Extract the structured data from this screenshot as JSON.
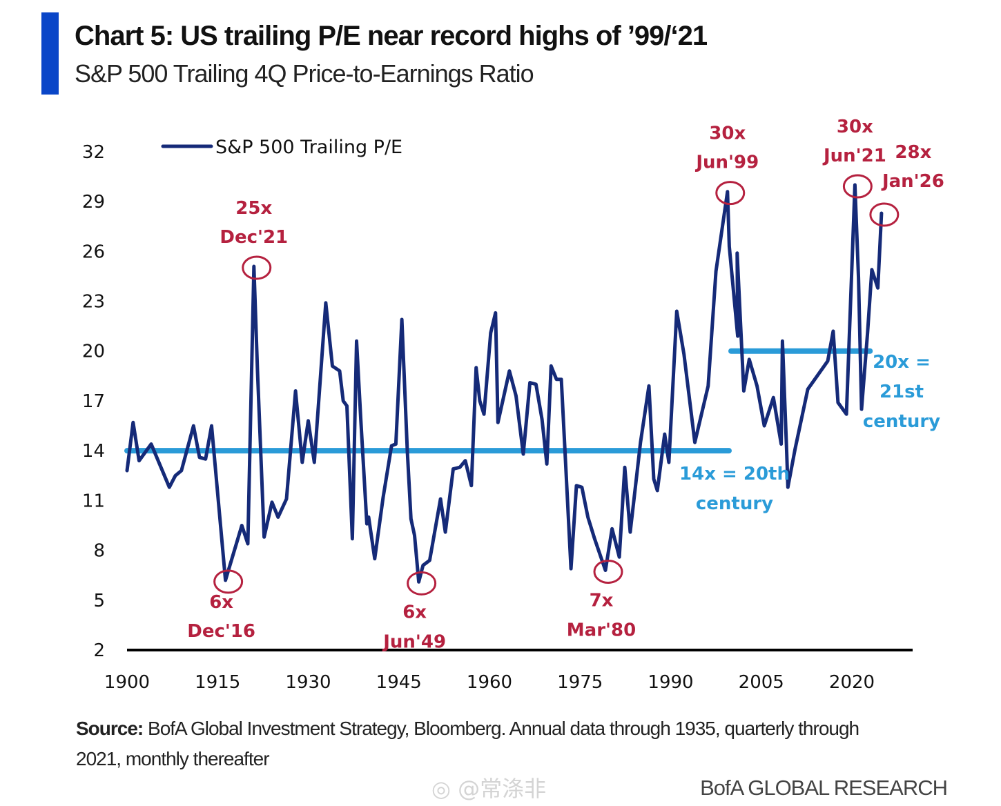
{
  "header": {
    "title": "Chart 5: US trailing P/E near record highs of ’99/‘21",
    "subtitle": "S&P 500 Trailing 4Q Price-to-Earnings Ratio"
  },
  "footer": {
    "source_label": "Source:",
    "source_text": " BofA Global Investment Strategy, Bloomberg. Annual data through 1935, quarterly through 2021, monthly thereafter",
    "watermark": "@常涤非",
    "brand": "BofA GLOBAL RESEARCH"
  },
  "colors": {
    "accent": "#0a46c8",
    "series": "#152a78",
    "average_line": "#2a9bd8",
    "annotation_red": "#b5213f"
  },
  "chart_data": {
    "type": "line",
    "title": "Chart 5: US trailing P/E near record highs of ’99/‘21",
    "subtitle": "S&P 500 Trailing 4Q Price-to-Earnings Ratio",
    "xlabel": "",
    "ylabel": "",
    "xlim": [
      1900,
      2030
    ],
    "ylim": [
      2,
      32
    ],
    "x_ticks": [
      1900,
      1915,
      1930,
      1945,
      1960,
      1975,
      1990,
      2005,
      2020
    ],
    "y_ticks": [
      2,
      5,
      8,
      11,
      14,
      17,
      20,
      23,
      26,
      29,
      32
    ],
    "grid": false,
    "legend": {
      "position": "top-left",
      "entries": [
        "S&P 500 Trailing P/E"
      ]
    },
    "series": [
      {
        "name": "S&P 500 Trailing P/E",
        "x": [
          1900,
          1901,
          1902,
          1904,
          1907,
          1908,
          1909,
          1911,
          1912,
          1913,
          1914,
          1916.3,
          1919,
          1920,
          1921,
          1921.6,
          1922.7,
          1924,
          1925,
          1926.4,
          1927.9,
          1929,
          1930,
          1931,
          1932.9,
          1934,
          1935.2,
          1935.8,
          1936.4,
          1937.3,
          1938,
          1938.7,
          1939.7,
          1940,
          1941,
          1942.4,
          1943.8,
          1944.5,
          1945.5,
          1946.4,
          1947,
          1947.6,
          1948.3,
          1949,
          1950.1,
          1951.9,
          1952.7,
          1954,
          1955.1,
          1956,
          1957,
          1957.8,
          1958.4,
          1959.1,
          1960.2,
          1961,
          1961.4,
          1963.3,
          1964.4,
          1965.6,
          1966.7,
          1967.7,
          1968.7,
          1969.5,
          1970.2,
          1971.1,
          1971.9,
          1973.5,
          1974.4,
          1975.3,
          1976.3,
          1977.4,
          1979.2,
          1980.3,
          1981.5,
          1982.4,
          1983.3,
          1985,
          1986.4,
          1987.2,
          1987.8,
          1989,
          1989.7,
          1991,
          1992.2,
          1994,
          1996.2,
          1997.5,
          1999.4,
          1999.7,
          2001.1,
          2001,
          2002.1,
          2003,
          2004.3,
          2005.5,
          2007,
          2008.3,
          2008.5,
          2009.2,
          2009.4,
          2010.6,
          2012.7,
          2016,
          2016.9,
          2017.7,
          2019.1,
          2020.5,
          2021.1,
          2021.6,
          2022.6,
          2023.3,
          2024.3,
          2024.9
        ],
        "values": [
          12.8,
          15.7,
          13.4,
          14.4,
          11.8,
          12.5,
          12.8,
          15.5,
          13.6,
          13.5,
          15.5,
          6.2,
          9.5,
          8.4,
          25.1,
          18.8,
          8.8,
          10.9,
          10.0,
          11.1,
          17.6,
          13.3,
          15.8,
          13.3,
          22.9,
          19.1,
          18.8,
          17.0,
          16.7,
          8.7,
          20.6,
          15.9,
          9.6,
          10.0,
          7.5,
          11.2,
          14.3,
          14.4,
          21.9,
          14.0,
          9.9,
          8.9,
          6.1,
          7.1,
          7.4,
          11.1,
          9.1,
          12.9,
          13.0,
          13.4,
          11.9,
          19.0,
          17.0,
          16.2,
          21.1,
          22.3,
          15.7,
          18.8,
          17.3,
          13.8,
          18.1,
          18.0,
          15.9,
          13.2,
          19.1,
          18.3,
          18.3,
          6.9,
          11.9,
          11.8,
          10.0,
          8.7,
          6.8,
          9.3,
          7.6,
          13.0,
          9.1,
          14.5,
          17.9,
          12.3,
          11.6,
          15.0,
          13.3,
          22.4,
          19.8,
          14.5,
          17.9,
          24.8,
          29.6,
          26.3,
          20.9,
          25.9,
          17.6,
          19.5,
          17.9,
          15.5,
          17.2,
          14.4,
          20.6,
          14.0,
          11.8,
          14.1,
          17.7,
          19.4,
          21.2,
          16.9,
          16.2,
          30.0,
          24.4,
          16.5,
          21.1,
          24.9,
          23.8,
          28.3
        ]
      }
    ],
    "reference_lines": [
      {
        "label": "14x = 20th century",
        "value": 14,
        "x_range": [
          1900,
          2000
        ]
      },
      {
        "label": "20x = 21st century",
        "value": 20,
        "x_range": [
          2000,
          2023
        ]
      }
    ],
    "annotations": [
      {
        "value_label": "25x",
        "date_label": "Dec'21",
        "x": 1921,
        "y": 25.1,
        "text_position": "above"
      },
      {
        "value_label": "6x",
        "date_label": "Dec'16",
        "x": 1916.3,
        "y": 6.2,
        "text_position": "below"
      },
      {
        "value_label": "6x",
        "date_label": "Jun'49",
        "x": 1948.3,
        "y": 6.1,
        "text_position": "below"
      },
      {
        "value_label": "7x",
        "date_label": "Mar'80",
        "x": 1979.2,
        "y": 6.8,
        "text_position": "below"
      },
      {
        "value_label": "30x",
        "date_label": "Jun'99",
        "x": 1999.4,
        "y": 29.6,
        "text_position": "above"
      },
      {
        "value_label": "30x",
        "date_label": "Jun'21",
        "x": 2020.5,
        "y": 30.0,
        "text_position": "above"
      },
      {
        "value_label": "28x",
        "date_label": "Jan'26",
        "x": 2024.9,
        "y": 28.3,
        "text_position": "above-right"
      }
    ],
    "reference_labels": [
      {
        "lines": [
          "14x = 20th",
          "century"
        ]
      },
      {
        "lines": [
          "20x =",
          "21st",
          "century"
        ]
      }
    ]
  }
}
